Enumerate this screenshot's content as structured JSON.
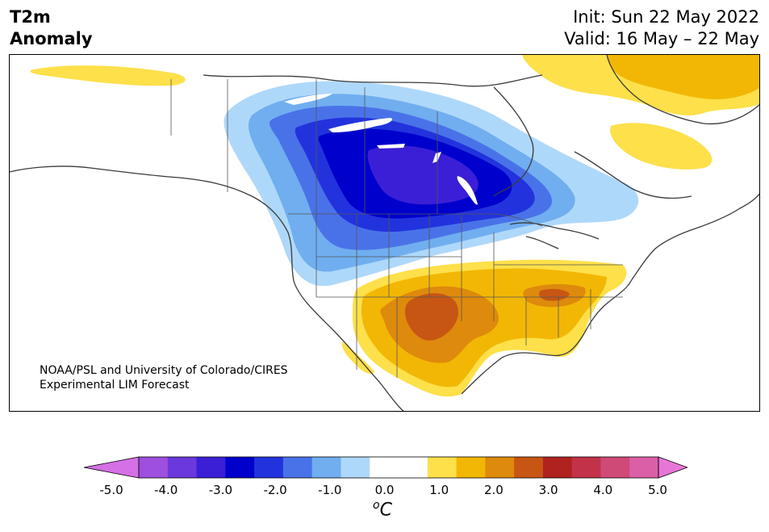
{
  "header": {
    "title_line1": "T2m",
    "title_line2": "Anomaly",
    "init_text": "Init: Sun 22 May 2022",
    "valid_text": "Valid: 16 May – 22 May"
  },
  "credit": {
    "line1": "NOAA/PSL and University of Colorado/CIRES",
    "line2": "Experimental LIM Forecast"
  },
  "colorbar": {
    "tick_labels": [
      "-5.0",
      "-4.0",
      "-3.0",
      "-2.0",
      "-1.0",
      "0.0",
      "1.0",
      "2.0",
      "3.0",
      "4.0",
      "5.0"
    ],
    "unit_symbol": "o",
    "unit_letter": "C",
    "colors": [
      "#d570e6",
      "#9e4fdd",
      "#6a38dd",
      "#3a1fd6",
      "#0000cc",
      "#2233dd",
      "#4a72e8",
      "#70aef0",
      "#aed8fa",
      "#ffffff",
      "#ffffff",
      "#fde04a",
      "#f2b705",
      "#de8a0c",
      "#c75614",
      "#b0221f",
      "#c2334a",
      "#d04a78",
      "#db5fa6",
      "#e677d6"
    ]
  },
  "map": {
    "anomaly_levels": {
      "cold": [
        "-1.0",
        "-2.0",
        "-3.0",
        "-4.0"
      ],
      "warm": [
        "1.0",
        "2.0",
        "3.0"
      ]
    }
  }
}
